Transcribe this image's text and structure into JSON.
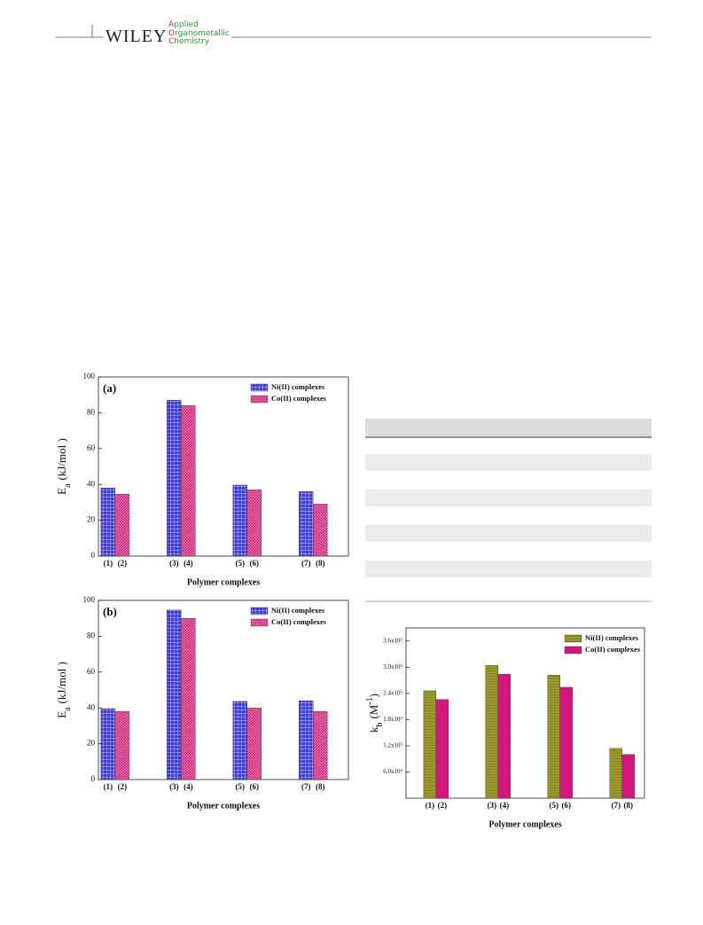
{
  "header": {
    "publisher": "WILEY",
    "journal": [
      "Applied",
      "Organometallic",
      "Chemistry"
    ]
  },
  "chart_data": [
    {
      "type": "bar",
      "panel": "(a)",
      "xlabel": "Polymer complexes",
      "ylabel": {
        "symbol": "E",
        "subscript": "a",
        "unit": "(kJ/mol )"
      },
      "ylim": [
        0,
        100
      ],
      "yticks": [
        0,
        20,
        40,
        60,
        80,
        100
      ],
      "legend": "upper right",
      "series": [
        {
          "name": "Ni(II) complexes",
          "color": "#3b3bd6",
          "pattern": "grid",
          "labels": [
            "(1)",
            "(3)",
            "(5)",
            "(7)"
          ],
          "values": [
            38,
            87,
            39.6,
            36
          ]
        },
        {
          "name": "Co(II) complexes",
          "color": "#d42a7c",
          "pattern": "hatch",
          "labels": [
            "(2)",
            "(4)",
            "(6)",
            "(8)"
          ],
          "values": [
            34.6,
            84,
            37,
            29
          ]
        }
      ]
    },
    {
      "type": "bar",
      "panel": "(b)",
      "xlabel": "Polymer complexes",
      "ylabel": {
        "symbol": "E",
        "subscript": "a",
        "unit": "(kJ/mol )"
      },
      "ylim": [
        0,
        100
      ],
      "yticks": [
        0,
        20,
        40,
        60,
        80,
        100
      ],
      "legend": "upper right",
      "series": [
        {
          "name": "Ni(II) complexes",
          "color": "#3b3bd6",
          "pattern": "grid",
          "labels": [
            "(1)",
            "(3)",
            "(5)",
            "(7)"
          ],
          "values": [
            39.6,
            94.6,
            43.6,
            44
          ]
        },
        {
          "name": "Co(II) complexes",
          "color": "#d42a7c",
          "pattern": "hatch",
          "labels": [
            "(2)",
            "(4)",
            "(6)",
            "(8)"
          ],
          "values": [
            38,
            90,
            40,
            38
          ]
        }
      ]
    },
    {
      "type": "bar",
      "xlabel": "Polymer complexes",
      "ylabel": {
        "symbol": "k",
        "subscript": "b",
        "unit": "(M",
        "superscript": "-1",
        "close": ")"
      },
      "ylim": [
        0,
        390000
      ],
      "yticks": [
        {
          "value": 60000,
          "label": "6.0x10⁴"
        },
        {
          "value": 120000,
          "label": "1.2x10⁵"
        },
        {
          "value": 180000,
          "label": "1.8x10⁵"
        },
        {
          "value": 240000,
          "label": "2.4x10⁵"
        },
        {
          "value": 300000,
          "label": "3.0x10⁵"
        },
        {
          "value": 360000,
          "label": "3.6x10⁵"
        }
      ],
      "legend": "upper right",
      "series": [
        {
          "name": "Ni(II) complexes",
          "color": "#9c9a2a",
          "pattern": "lines",
          "labels": [
            "(1)",
            "(3)",
            "(5)",
            "(7)"
          ],
          "values": [
            246000,
            304000,
            282000,
            114000
          ]
        },
        {
          "name": "Co(II) complexes",
          "color": "#d4157f",
          "pattern": "solid",
          "labels": [
            "(2)",
            "(4)",
            "(6)",
            "(8)"
          ],
          "values": [
            226000,
            284000,
            254000,
            100000
          ]
        }
      ]
    }
  ]
}
